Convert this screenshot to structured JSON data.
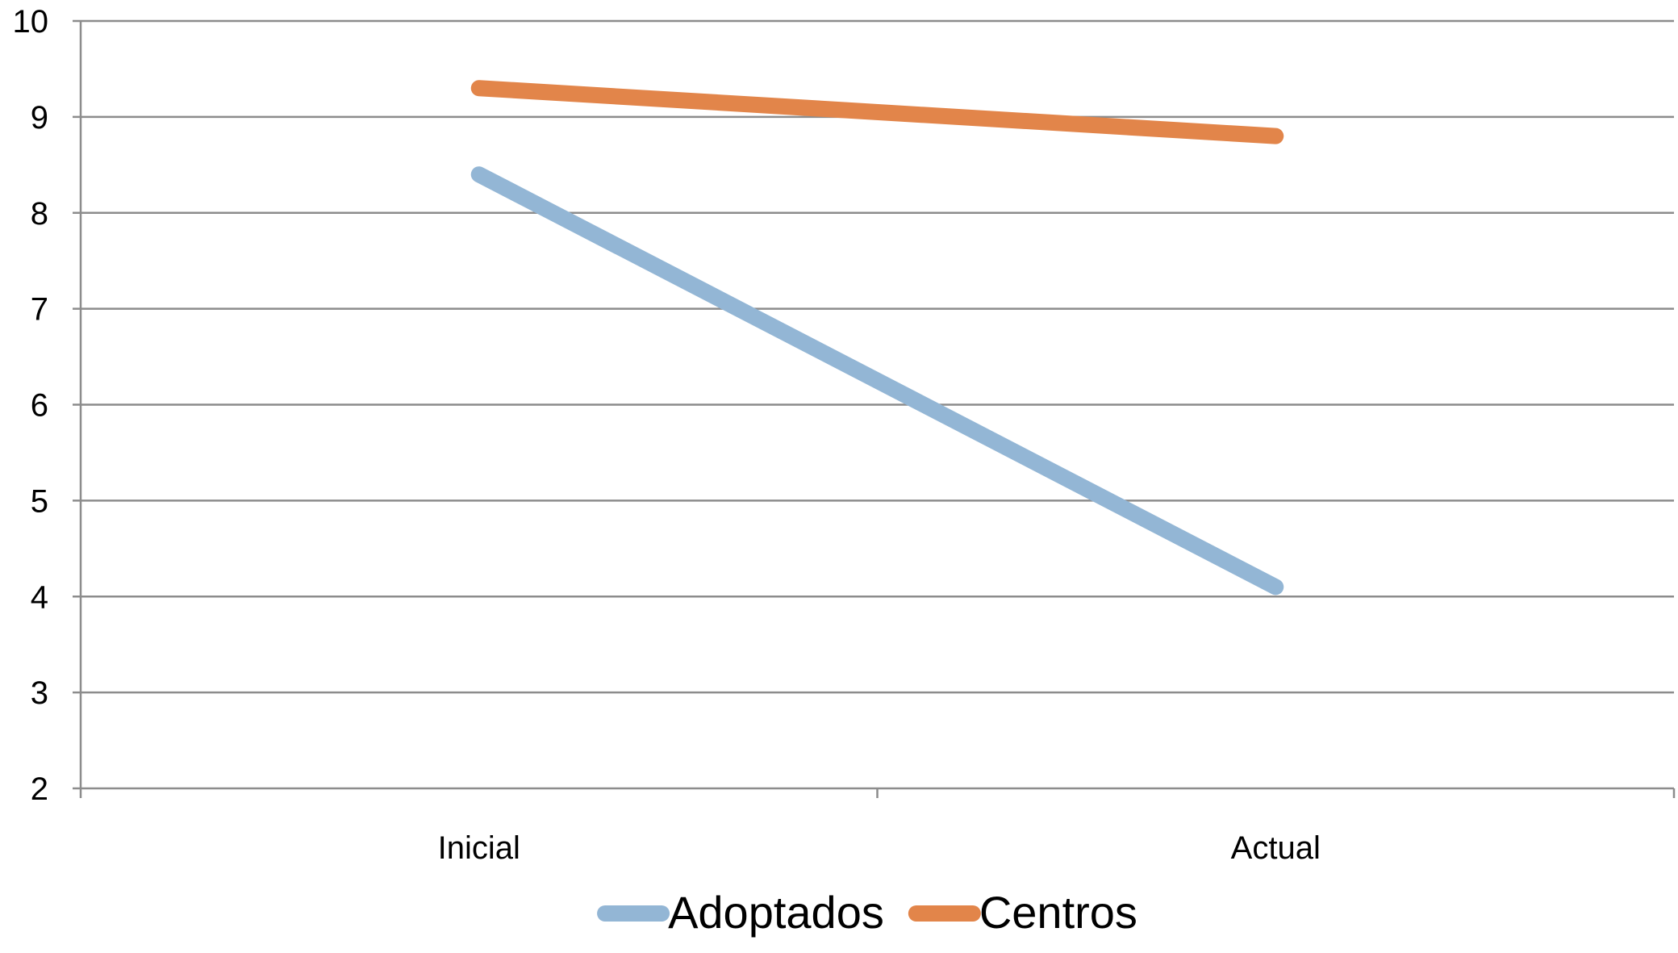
{
  "chart_data": {
    "type": "line",
    "title": "",
    "xlabel": "",
    "ylabel": "",
    "categories": [
      "Inicial",
      "Actual"
    ],
    "series": [
      {
        "name": "Adoptados",
        "color": "#93b6d5",
        "values": [
          8.4,
          4.1
        ]
      },
      {
        "name": "Centros",
        "color": "#e2854a",
        "values": [
          9.3,
          8.8
        ]
      }
    ],
    "ylim": [
      2,
      10
    ],
    "yticks": [
      2,
      3,
      4,
      5,
      6,
      7,
      8,
      9,
      10
    ],
    "grid": true,
    "legend": "bottom",
    "colors": {
      "grid": "#8c8c8c",
      "axis": "#8c8c8c",
      "text": "#000000"
    }
  }
}
